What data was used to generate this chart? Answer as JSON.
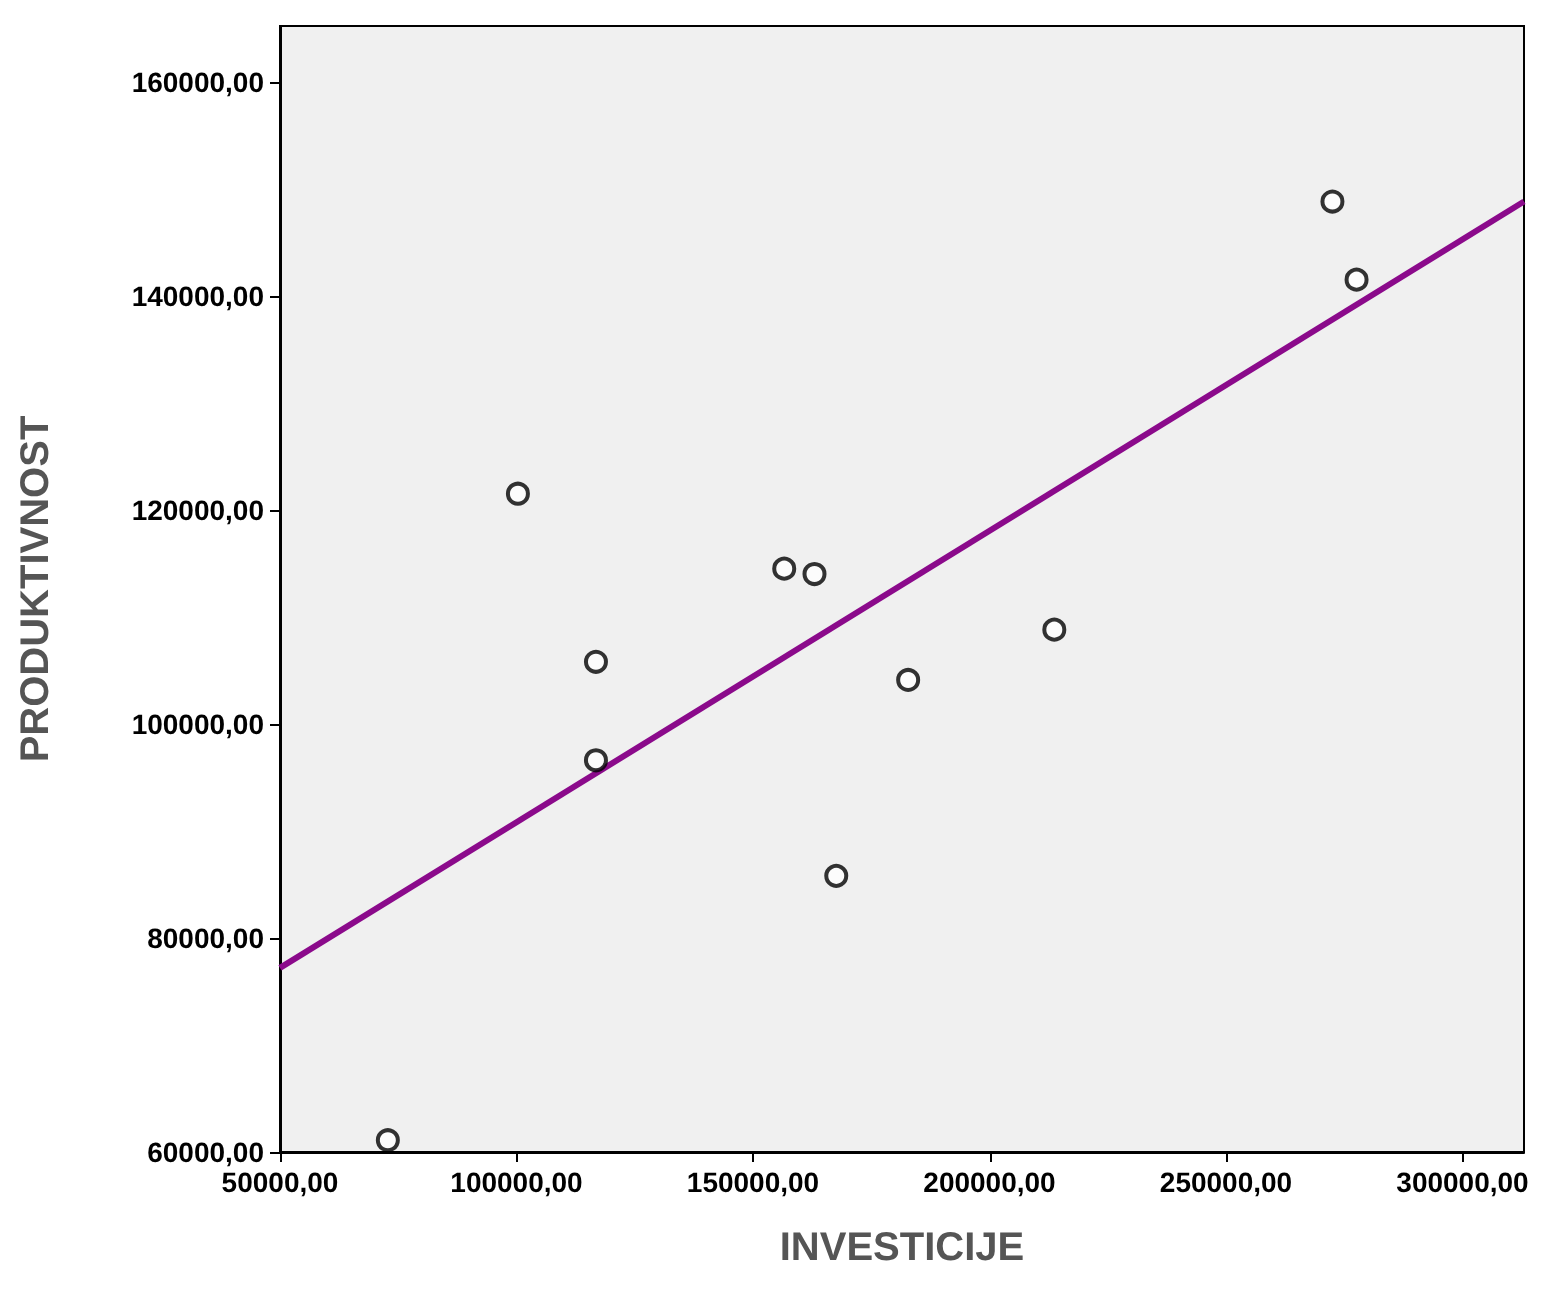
{
  "chart_data": {
    "type": "scatter",
    "xlabel": "INVESTICIJE",
    "ylabel": "PRODUKTIVNOST",
    "marker": "circle",
    "grid": false,
    "xlim": [
      50000,
      313000
    ],
    "ylim": [
      60000,
      165200
    ],
    "xticks": [
      {
        "value": 50000,
        "label": "50000,00"
      },
      {
        "value": 100000,
        "label": "100000,00"
      },
      {
        "value": 150000,
        "label": "150000,00"
      },
      {
        "value": 200000,
        "label": "200000,00"
      },
      {
        "value": 250000,
        "label": "250000,00"
      },
      {
        "value": 300000,
        "label": "300000,00"
      }
    ],
    "yticks": [
      {
        "value": 60000,
        "label": "60000,00"
      },
      {
        "value": 80000,
        "label": "80000,00"
      },
      {
        "value": 100000,
        "label": "100000,00"
      },
      {
        "value": 120000,
        "label": "120000,00"
      },
      {
        "value": 140000,
        "label": "140000,00"
      },
      {
        "value": 160000,
        "label": "160000,00"
      }
    ],
    "series": [
      {
        "color": "#000000",
        "x": [
          72800,
          100300,
          116800,
          116800,
          156600,
          163000,
          167600,
          182800,
          213700,
          272500,
          277600
        ],
        "values": [
          61100,
          121500,
          105800,
          96600,
          114500,
          114000,
          85800,
          104100,
          108800,
          148800,
          141500
        ]
      },
      {
        "type": "line",
        "color": "#8b0a8b",
        "marker": "none",
        "x": [
          50000,
          313000
        ],
        "values": [
          77200,
          148800
        ]
      }
    ]
  }
}
